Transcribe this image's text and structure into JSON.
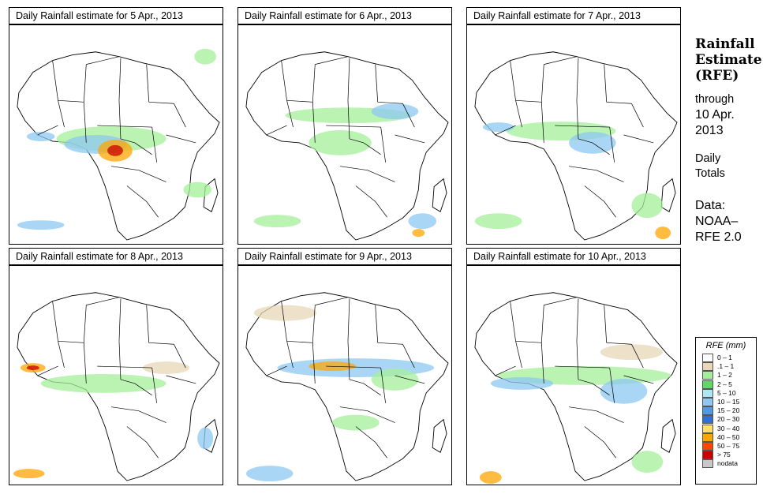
{
  "panels": [
    {
      "title": "Daily Rainfall estimate for  5 Apr., 2013"
    },
    {
      "title": "Daily Rainfall estimate for  6 Apr., 2013"
    },
    {
      "title": "Daily Rainfall estimate for  7 Apr., 2013"
    },
    {
      "title": "Daily Rainfall estimate for  8 Apr., 2013"
    },
    {
      "title": "Daily Rainfall estimate for  9 Apr., 2013"
    },
    {
      "title": "Daily Rainfall estimate for  10 Apr., 2013"
    }
  ],
  "side": {
    "title_line1": "Rainfall",
    "title_line2": "Estimate",
    "title_line3": "(RFE)",
    "through": "through",
    "through_date_line1": "10 Apr.",
    "through_date_line2": "2013",
    "period_line1": "Daily",
    "period_line2": "Totals",
    "data_label": "Data:",
    "data_source_line1": "NOAA–",
    "data_source_line2": "RFE 2.0"
  },
  "legend": {
    "title": "RFE (mm)",
    "items": [
      {
        "label": "0 – 1",
        "color": "#ffffff"
      },
      {
        "label": ".1 – 1",
        "color": "#e8d7b8"
      },
      {
        "label": "1 – 2",
        "color": "#a4ef9a"
      },
      {
        "label": "2 – 5",
        "color": "#5fd965"
      },
      {
        "label": "5 – 10",
        "color": "#aee6f5"
      },
      {
        "label": "10 – 15",
        "color": "#8ec8f2"
      },
      {
        "label": "15 – 20",
        "color": "#4d9be8"
      },
      {
        "label": "20 – 30",
        "color": "#2f6fd6"
      },
      {
        "label": "30 – 40",
        "color": "#ffe067"
      },
      {
        "label": "40 – 50",
        "color": "#ffa500"
      },
      {
        "label": "50 – 75",
        "color": "#ff4500"
      },
      {
        "label": "> 75",
        "color": "#c80000"
      },
      {
        "label": "nodata",
        "color": "#c8c8c8"
      }
    ]
  },
  "map_colors": {
    "ocean": "#ffffff",
    "land": "#ffffff",
    "border": "#000000",
    "dry_beige": "#e8d7b8",
    "light_green": "#a4ef9a",
    "green": "#5fd965",
    "light_blue": "#8ec8f2",
    "blue": "#2f6fd6",
    "orange": "#ffa500",
    "red": "#c80000"
  }
}
